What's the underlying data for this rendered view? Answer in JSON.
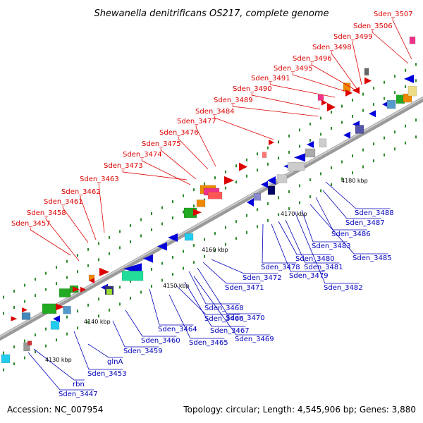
{
  "title": "Shewanella denitrificans OS217, complete genome",
  "accession": "Accession: NC_007954",
  "summary": "Topology: circular; Length: 4,545,906 bp; Genes: 3,880",
  "colors": {
    "upper_label": "#dd0000",
    "lower_label": "#0000bb",
    "backbone": "#888888"
  },
  "kbp_ticks": [
    "4130 kbp",
    "4140 kbp",
    "4150 kbp",
    "4160 kbp",
    "4170 kbp",
    "4180 kbp"
  ],
  "upper_labels": [
    "Sden_3457",
    "Sden_3458",
    "Sden_3461",
    "Sden_3462",
    "Sden_3463",
    "Sden_3473",
    "Sden_3474",
    "Sden_3475",
    "Sden_3476",
    "Sden_3477",
    "Sden_3484",
    "Sden_3489",
    "Sden_3490",
    "Sden_3491",
    "Sden_3495",
    "Sden_3496",
    "Sden_3498",
    "Sden_3499",
    "Sden_3506",
    "Sden_3507"
  ],
  "lower_labels": [
    "Sden_3447",
    "rbn",
    "Sden_3453",
    "glnA",
    "Sden_3459",
    "Sden_3460",
    "Sden_3464",
    "Sden_3465",
    "Sden_3466",
    "Sden_3467",
    "Sden_3469",
    "Sden_3468",
    "Sden_3470",
    "Sden_3471",
    "Sden_3472",
    "Sden_3478",
    "Sden_3479",
    "Sden_3480",
    "Sden_3481",
    "Sden_3482",
    "Sden_3483",
    "Sden_3485",
    "Sden_3486",
    "Sden_3487",
    "Sden_3488"
  ]
}
